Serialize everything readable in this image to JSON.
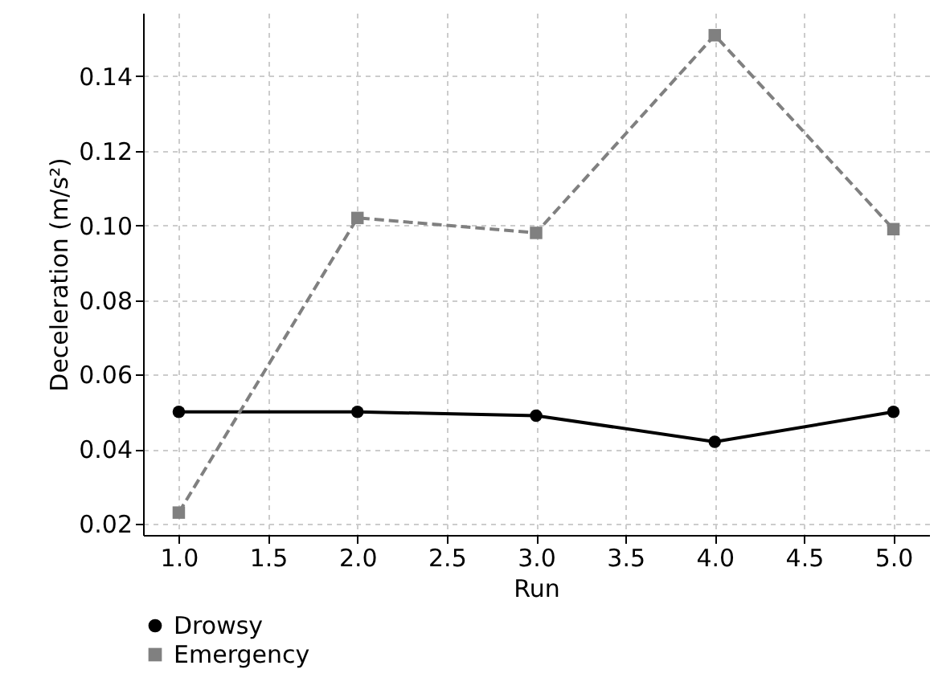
{
  "chart_data": {
    "type": "line",
    "xlabel": "Run",
    "ylabel": "Deceleration (m/s²)",
    "x": [
      1,
      2,
      3,
      4,
      5
    ],
    "series": [
      {
        "name": "Drowsy",
        "color": "#000000",
        "marker": "circle",
        "line_style": "solid",
        "values": [
          0.05,
          0.05,
          0.049,
          0.042,
          0.05
        ]
      },
      {
        "name": "Emergency",
        "color": "#808080",
        "marker": "square",
        "line_style": "dashed",
        "values": [
          0.023,
          0.102,
          0.098,
          0.151,
          0.099
        ]
      }
    ],
    "xlim": [
      0.8,
      5.2
    ],
    "xticks": [
      {
        "value": 1,
        "label": "1.0"
      },
      1.5,
      {
        "value": 2,
        "label": "2.0"
      },
      2.5,
      {
        "value": 3,
        "label": "3.0"
      },
      3.5,
      {
        "value": 4,
        "label": "4.0"
      },
      4.5,
      {
        "value": 5,
        "label": "5.0"
      }
    ],
    "ylim": [
      0.017,
      0.157
    ],
    "yticks": [
      0.02,
      0.04,
      0.06,
      0.08,
      {
        "value": 0.1,
        "label": "0.10"
      },
      0.12,
      0.14
    ],
    "grid": true,
    "legend": "bottom"
  }
}
